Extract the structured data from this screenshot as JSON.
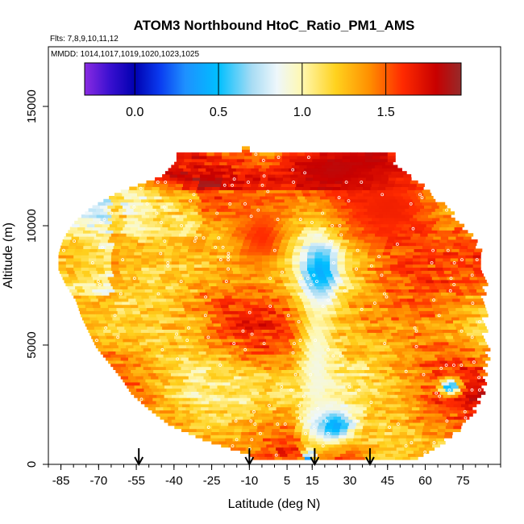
{
  "chart_data": {
    "type": "heatmap",
    "title": "ATOM3 Northbound HtoC_Ratio_PM1_AMS",
    "flights_label": "Flts: 7,8,9,10,11,12",
    "dates_label": "MMDD: 1014,1017,1019,1020,1023,1025",
    "xlabel": "Latitude (deg N)",
    "ylabel": "Altitude (m)",
    "xlim": [
      -90,
      90
    ],
    "ylim": [
      0,
      17500
    ],
    "x_ticks": [
      -85,
      -70,
      -55,
      -40,
      -25,
      -10,
      5,
      15,
      30,
      45,
      60,
      75
    ],
    "x_tick_labels": [
      "-85",
      "-70",
      "-55",
      "-40",
      "-25",
      "-10",
      "5",
      "15",
      "30",
      "45",
      "60",
      "75"
    ],
    "y_ticks": [
      0,
      5000,
      10000,
      15000
    ],
    "y_tick_labels": [
      "0",
      "5000",
      "10000",
      "15000"
    ],
    "colorbar": {
      "range": [
        -0.3,
        1.95
      ],
      "ticks": [
        0.0,
        0.5,
        1.0,
        1.5
      ],
      "tick_labels": [
        "0.0",
        "0.5",
        "1.0",
        "1.5"
      ],
      "stops": [
        {
          "v": -0.3,
          "c": "#8a2be2"
        },
        {
          "v": -0.15,
          "c": "#3a10d0"
        },
        {
          "v": 0.0,
          "c": "#0000b0"
        },
        {
          "v": 0.15,
          "c": "#0a3cf0"
        },
        {
          "v": 0.3,
          "c": "#1e90ff"
        },
        {
          "v": 0.5,
          "c": "#00bfff"
        },
        {
          "v": 0.7,
          "c": "#a8dcf4"
        },
        {
          "v": 0.85,
          "c": "#eef7fb"
        },
        {
          "v": 1.0,
          "c": "#fff8b0"
        },
        {
          "v": 1.2,
          "c": "#ffd21e"
        },
        {
          "v": 1.4,
          "c": "#ff9000"
        },
        {
          "v": 1.6,
          "c": "#ff2a00"
        },
        {
          "v": 1.8,
          "c": "#c80000"
        },
        {
          "v": 1.95,
          "c": "#962a2a"
        }
      ]
    },
    "coverage_km": [
      {
        "alt": 12650,
        "lat": [
          -39,
          46
        ]
      },
      {
        "alt": 12000,
        "lat": [
          -45,
          53
        ]
      },
      {
        "alt": 11350,
        "lat": [
          -62,
          60
        ]
      },
      {
        "alt": 10700,
        "lat": [
          -73,
          67
        ]
      },
      {
        "alt": 10050,
        "lat": [
          -80,
          72
        ]
      },
      {
        "alt": 9400,
        "lat": [
          -84,
          78
        ]
      },
      {
        "alt": 8750,
        "lat": [
          -86,
          80
        ]
      },
      {
        "alt": 8100,
        "lat": [
          -86,
          81
        ]
      },
      {
        "alt": 7450,
        "lat": [
          -83,
          82
        ]
      },
      {
        "alt": 6800,
        "lat": [
          -79,
          82
        ]
      },
      {
        "alt": 6150,
        "lat": [
          -77,
          82
        ]
      },
      {
        "alt": 5500,
        "lat": [
          -74,
          82
        ]
      },
      {
        "alt": 4850,
        "lat": [
          -71,
          83
        ]
      },
      {
        "alt": 4200,
        "lat": [
          -66,
          83
        ]
      },
      {
        "alt": 3550,
        "lat": [
          -61,
          82
        ]
      },
      {
        "alt": 2900,
        "lat": [
          -57,
          81
        ]
      },
      {
        "alt": 2250,
        "lat": [
          -50,
          78
        ]
      },
      {
        "alt": 1600,
        "lat": [
          -42,
          74
        ]
      },
      {
        "alt": 950,
        "lat": [
          -28,
          67
        ]
      },
      {
        "alt": 300,
        "lat": [
          -9,
          56
        ]
      }
    ],
    "features": [
      {
        "name": "upper-red-core",
        "lat": 27,
        "alt": 12300,
        "w_lat": 22,
        "w_alt": 800,
        "value": 1.85
      },
      {
        "name": "upper-north-red",
        "lat": 45,
        "alt": 10700,
        "w_lat": 20,
        "w_alt": 1400,
        "value": 1.65
      },
      {
        "name": "midlevel-red",
        "lat": -5,
        "alt": 9500,
        "w_lat": 12,
        "w_alt": 1500,
        "value": 1.6
      },
      {
        "name": "midlevel-blue",
        "lat": 18,
        "alt": 7900,
        "w_lat": 7,
        "w_alt": 1300,
        "value": 0.25
      },
      {
        "name": "lowlevel-blue",
        "lat": 22,
        "alt": 1600,
        "w_lat": 9,
        "w_alt": 700,
        "value": 0.2
      },
      {
        "name": "near-surface-blue",
        "lat": 14,
        "alt": 250,
        "w_lat": 2,
        "w_alt": 300,
        "value": 0.05
      },
      {
        "name": "north-lowlevel-blue",
        "lat": 70,
        "alt": 3200,
        "w_lat": 4,
        "w_alt": 350,
        "value": 0.4
      },
      {
        "name": "south-pale-column",
        "lat": 17,
        "alt": 4000,
        "w_lat": 7,
        "w_alt": 3500,
        "value": 0.9
      }
    ],
    "arrows_lat": [
      -54,
      -10,
      16,
      38
    ],
    "background_value": 1.3
  }
}
